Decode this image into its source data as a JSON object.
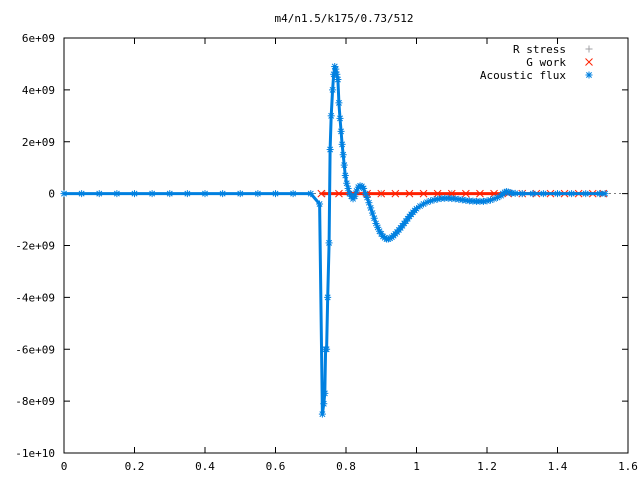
{
  "chart_data": {
    "type": "scatter",
    "title": "m4/n1.5/k175/0.73/512",
    "xlabel": "",
    "ylabel": "",
    "xlim": [
      0,
      1.6
    ],
    "ylim": [
      -10000000000,
      6000000000
    ],
    "x_ticks": [
      0,
      0.2,
      0.4,
      0.6,
      0.8,
      1,
      1.2,
      1.4,
      1.6
    ],
    "x_tick_labels": [
      "0",
      "0.2",
      "0.4",
      "0.6",
      "0.8",
      "1",
      "1.2",
      "1.4",
      "1.6"
    ],
    "y_ticks": [
      6000000000,
      4000000000,
      2000000000,
      0,
      -2000000000,
      -4000000000,
      -6000000000,
      -8000000000,
      -10000000000
    ],
    "y_tick_labels": [
      "6e+09",
      "4e+09",
      "2e+09",
      "0",
      "-2e+09",
      "-4e+09",
      "-6e+09",
      "-8e+09",
      "-1e+10"
    ],
    "grid": false,
    "legend_position": "top-right",
    "series": [
      {
        "name": "R stress",
        "marker": "plus",
        "color": "#a0a0a4",
        "x": [
          0.74,
          0.9,
          1.1,
          1.3,
          1.52
        ],
        "y": [
          0,
          0,
          0,
          0,
          0
        ]
      },
      {
        "name": "G work",
        "marker": "cross",
        "color": "#ff2000",
        "x": [
          0.73,
          0.78,
          0.82,
          0.86,
          0.9,
          0.94,
          0.98,
          1.02,
          1.06,
          1.1,
          1.14,
          1.18,
          1.22,
          1.26,
          1.3,
          1.34,
          1.38,
          1.42,
          1.46,
          1.5,
          1.53
        ],
        "y": [
          0,
          0,
          0,
          0,
          0,
          0,
          0,
          0,
          0,
          0,
          0,
          0,
          0,
          0,
          0,
          0,
          0,
          0,
          0,
          0,
          0
        ]
      },
      {
        "name": "Acoustic flux",
        "marker": "star",
        "color": "#0080e0",
        "x": [
          0,
          0.05,
          0.1,
          0.15,
          0.2,
          0.25,
          0.3,
          0.35,
          0.4,
          0.45,
          0.5,
          0.55,
          0.6,
          0.65,
          0.7,
          0.725,
          0.733,
          0.737,
          0.74,
          0.742,
          0.745,
          0.748,
          0.752,
          0.755,
          0.758,
          0.762,
          0.765,
          0.768,
          0.771,
          0.774,
          0.777,
          0.78,
          0.783,
          0.786,
          0.789,
          0.792,
          0.795,
          0.798,
          0.802,
          0.806,
          0.81,
          0.815,
          0.82,
          0.825,
          0.83,
          0.835,
          0.84,
          0.845,
          0.85,
          0.855,
          0.86,
          0.865,
          0.87,
          0.875,
          0.88,
          0.885,
          0.89,
          0.895,
          0.9,
          0.905,
          0.91,
          0.915,
          0.92,
          0.925,
          0.93,
          0.935,
          0.94,
          0.945,
          0.95,
          0.955,
          0.96,
          0.965,
          0.97,
          0.975,
          0.98,
          0.985,
          0.99,
          0.995,
          1.0,
          1.01,
          1.02,
          1.03,
          1.04,
          1.05,
          1.06,
          1.07,
          1.08,
          1.09,
          1.1,
          1.11,
          1.12,
          1.13,
          1.14,
          1.15,
          1.16,
          1.17,
          1.18,
          1.19,
          1.2,
          1.21,
          1.22,
          1.23,
          1.24,
          1.245,
          1.25,
          1.255,
          1.26,
          1.265,
          1.27,
          1.28,
          1.3,
          1.33,
          1.36,
          1.4,
          1.44,
          1.48,
          1.52,
          1.535
        ],
        "y": [
          0,
          0,
          0,
          0,
          0,
          0,
          0,
          0,
          0,
          0,
          0,
          0,
          0,
          0,
          0,
          -400000000,
          -8500000000,
          -8100000000,
          -7700000000,
          -6000000000,
          -6000000000,
          -4000000000,
          -1900000000,
          1700000000,
          3000000000,
          4000000000,
          4600000000,
          4900000000,
          4800000000,
          4600000000,
          4400000000,
          3500000000,
          2900000000,
          2400000000,
          1900000000,
          1500000000,
          1100000000,
          700000000,
          400000000,
          200000000,
          0,
          -100000000,
          -200000000,
          -100000000,
          100000000,
          250000000,
          300000000,
          280000000,
          200000000,
          0,
          -150000000,
          -350000000,
          -550000000,
          -750000000,
          -950000000,
          -1150000000,
          -1300000000,
          -1450000000,
          -1550000000,
          -1650000000,
          -1700000000,
          -1750000000,
          -1750000000,
          -1720000000,
          -1680000000,
          -1620000000,
          -1550000000,
          -1480000000,
          -1400000000,
          -1320000000,
          -1240000000,
          -1150000000,
          -1060000000,
          -970000000,
          -880000000,
          -800000000,
          -720000000,
          -650000000,
          -580000000,
          -480000000,
          -400000000,
          -330000000,
          -280000000,
          -240000000,
          -210000000,
          -190000000,
          -180000000,
          -180000000,
          -190000000,
          -200000000,
          -220000000,
          -240000000,
          -260000000,
          -280000000,
          -290000000,
          -300000000,
          -300000000,
          -300000000,
          -280000000,
          -250000000,
          -200000000,
          -150000000,
          -80000000,
          0,
          50000000,
          80000000,
          60000000,
          40000000,
          20000000,
          10000000,
          0,
          0,
          0,
          0,
          0,
          0,
          0,
          0
        ]
      }
    ]
  }
}
